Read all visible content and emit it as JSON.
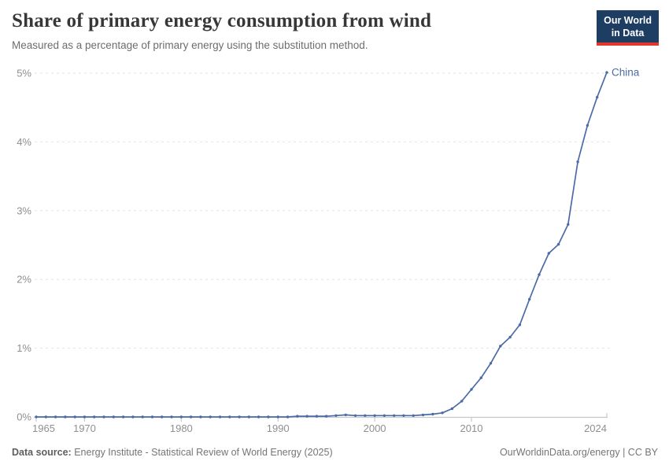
{
  "header": {
    "title": "Share of primary energy consumption from wind",
    "subtitle": "Measured as a percentage of primary energy using the substitution method.",
    "logo": {
      "line1": "Our World",
      "line2": "in Data",
      "bg_color": "#1d3d63",
      "accent_color": "#e0362b"
    }
  },
  "chart_data": {
    "type": "line",
    "title": "Share of primary energy consumption from wind",
    "xlabel": "",
    "ylabel": "",
    "xlim": [
      1965,
      2024
    ],
    "ylim": [
      0,
      5
    ],
    "grid": "horizontal-dashed",
    "legend_position": "end-of-line-label",
    "x_ticks": [
      1965,
      1970,
      1980,
      1990,
      2000,
      2010,
      2024
    ],
    "y_ticks": [
      0,
      1,
      2,
      3,
      4,
      5
    ],
    "y_tick_suffix": "%",
    "x": [
      1965,
      1966,
      1967,
      1968,
      1969,
      1970,
      1971,
      1972,
      1973,
      1974,
      1975,
      1976,
      1977,
      1978,
      1979,
      1980,
      1981,
      1982,
      1983,
      1984,
      1985,
      1986,
      1987,
      1988,
      1989,
      1990,
      1991,
      1992,
      1993,
      1994,
      1995,
      1996,
      1997,
      1998,
      1999,
      2000,
      2001,
      2002,
      2003,
      2004,
      2005,
      2006,
      2007,
      2008,
      2009,
      2010,
      2011,
      2012,
      2013,
      2014,
      2015,
      2016,
      2017,
      2018,
      2019,
      2020,
      2021,
      2022,
      2023,
      2024
    ],
    "series": [
      {
        "name": "China",
        "color": "#4c6ba6",
        "values": [
          0,
          0,
          0,
          0,
          0,
          0,
          0,
          0,
          0,
          0,
          0,
          0,
          0,
          0,
          0,
          0,
          0,
          0,
          0,
          0,
          0,
          0,
          0,
          0,
          0,
          0,
          0,
          0.01,
          0.01,
          0.01,
          0.01,
          0.02,
          0.03,
          0.02,
          0.02,
          0.02,
          0.02,
          0.02,
          0.02,
          0.02,
          0.03,
          0.04,
          0.06,
          0.12,
          0.23,
          0.4,
          0.57,
          0.78,
          1.03,
          1.16,
          1.34,
          1.71,
          2.07,
          2.38,
          2.51,
          2.8,
          3.71,
          4.24,
          4.65,
          5.01
        ]
      }
    ],
    "colors": {
      "gridline": "#e2e2e2",
      "axis_line": "#c9c9c9",
      "tick_text": "#8f8f8f"
    }
  },
  "footer": {
    "source_label": "Data source:",
    "source_text": "Energy Institute - Statistical Review of World Energy (2025)",
    "link": "OurWorldinData.org/energy",
    "separator": " | ",
    "license": "CC BY"
  }
}
